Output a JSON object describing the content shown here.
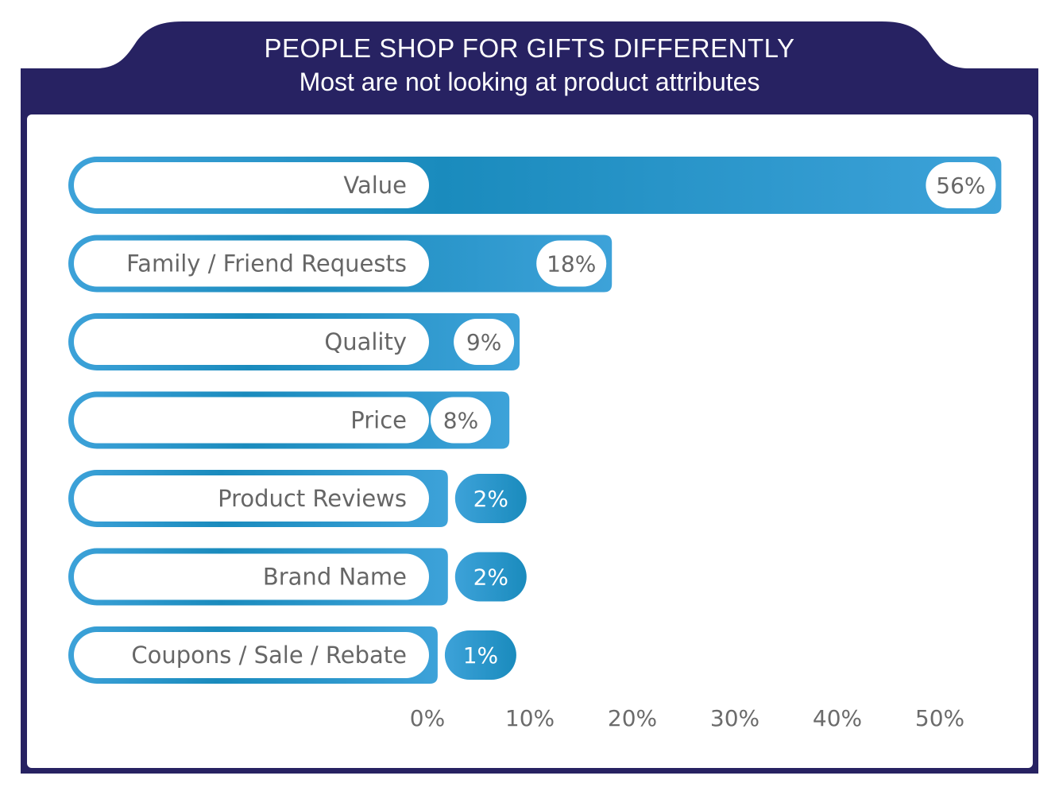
{
  "header": {
    "title": "PEOPLE SHOP FOR GIFTS DIFFERENTLY",
    "subtitle": "Most are not looking at product attributes"
  },
  "colors": {
    "frame": "#272262",
    "bar_light": "#3da2d9",
    "bar_dark": "#1a8bbd",
    "label_text": "#666666",
    "pill_bg": "#ffffff"
  },
  "chart_data": {
    "type": "bar",
    "orientation": "horizontal",
    "title": "PEOPLE SHOP FOR GIFTS DIFFERENTLY",
    "subtitle": "Most are not looking at product attributes",
    "categories": [
      "Value",
      "Family / Friend Requests",
      "Quality",
      "Price",
      "Product Reviews",
      "Brand Name",
      "Coupons / Sale / Rebate"
    ],
    "values": [
      56,
      18,
      9,
      8,
      2,
      2,
      1
    ],
    "value_labels": [
      "56%",
      "18%",
      "9%",
      "8%",
      "2%",
      "2%",
      "1%"
    ],
    "xlabel": "",
    "ylabel": "",
    "xlim": [
      0,
      56
    ],
    "x_ticks": [
      0,
      10,
      20,
      30,
      40,
      50
    ],
    "x_tick_labels": [
      "0%",
      "10%",
      "20%",
      "30%",
      "40%",
      "50%"
    ],
    "grid": false,
    "legend": "none"
  }
}
